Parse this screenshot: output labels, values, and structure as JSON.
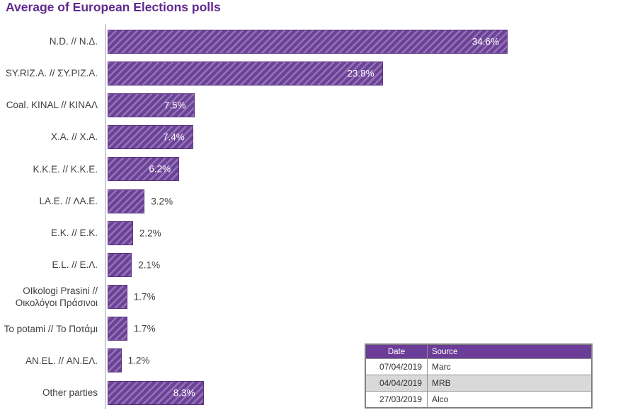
{
  "chart_data": {
    "type": "bar",
    "orientation": "horizontal",
    "title": "Average of European Elections polls",
    "categories": [
      "N.D. // Ν.Δ.",
      "SY.RIZ.A. // ΣΥ.ΡΙΖ.Α.",
      "Coal. KINAL // ΚΙΝΑΛ",
      "X.A. // Χ.Α.",
      "K.K.E. // Κ.Κ.Ε.",
      "LA.E. // ΛΑ.Ε.",
      "E.K. // Ε.Κ.",
      "E.L. // Ε.Λ.",
      "OIkologi Prasini // Οικολόγοι Πράσινοι",
      "To potami // Το Ποτάμι",
      "AN.EL. // ΑΝ.ΕΛ.",
      "Other parties"
    ],
    "values": [
      34.6,
      23.8,
      7.5,
      7.4,
      6.2,
      3.2,
      2.2,
      2.1,
      1.7,
      1.7,
      1.2,
      8.3
    ],
    "value_labels": [
      "34.6%",
      "23.8%",
      "7.5%",
      "7.4%",
      "6.2%",
      "3.2%",
      "2.2%",
      "2.1%",
      "1.7%",
      "1.7%",
      "1.2%",
      "8.3%"
    ],
    "xlabel": "",
    "ylabel": "",
    "xlim": [
      0,
      36
    ],
    "grid": false,
    "legend": false,
    "bar_style": "diagonal-hatch",
    "colors": {
      "bar_fill": "#6C4198",
      "bar_border": "#5B3480",
      "title": "#61298E",
      "category_label": "#3F3F3F",
      "value_inside": "#FFFFFF",
      "value_outside": "#3F3F3F",
      "axis_line": "#CFCBD8"
    }
  },
  "table": {
    "headers": [
      "Date",
      "Source"
    ],
    "rows": [
      [
        "07/04/2019",
        "Marc"
      ],
      [
        "04/04/2019",
        "MRB"
      ],
      [
        "27/03/2019",
        "Alco"
      ]
    ],
    "colors": {
      "header_bg": "#6C3D98",
      "header_text": "#FFFFFF",
      "alt_row_bg": "#D9D9D9",
      "border": "#7F7F7F"
    }
  }
}
